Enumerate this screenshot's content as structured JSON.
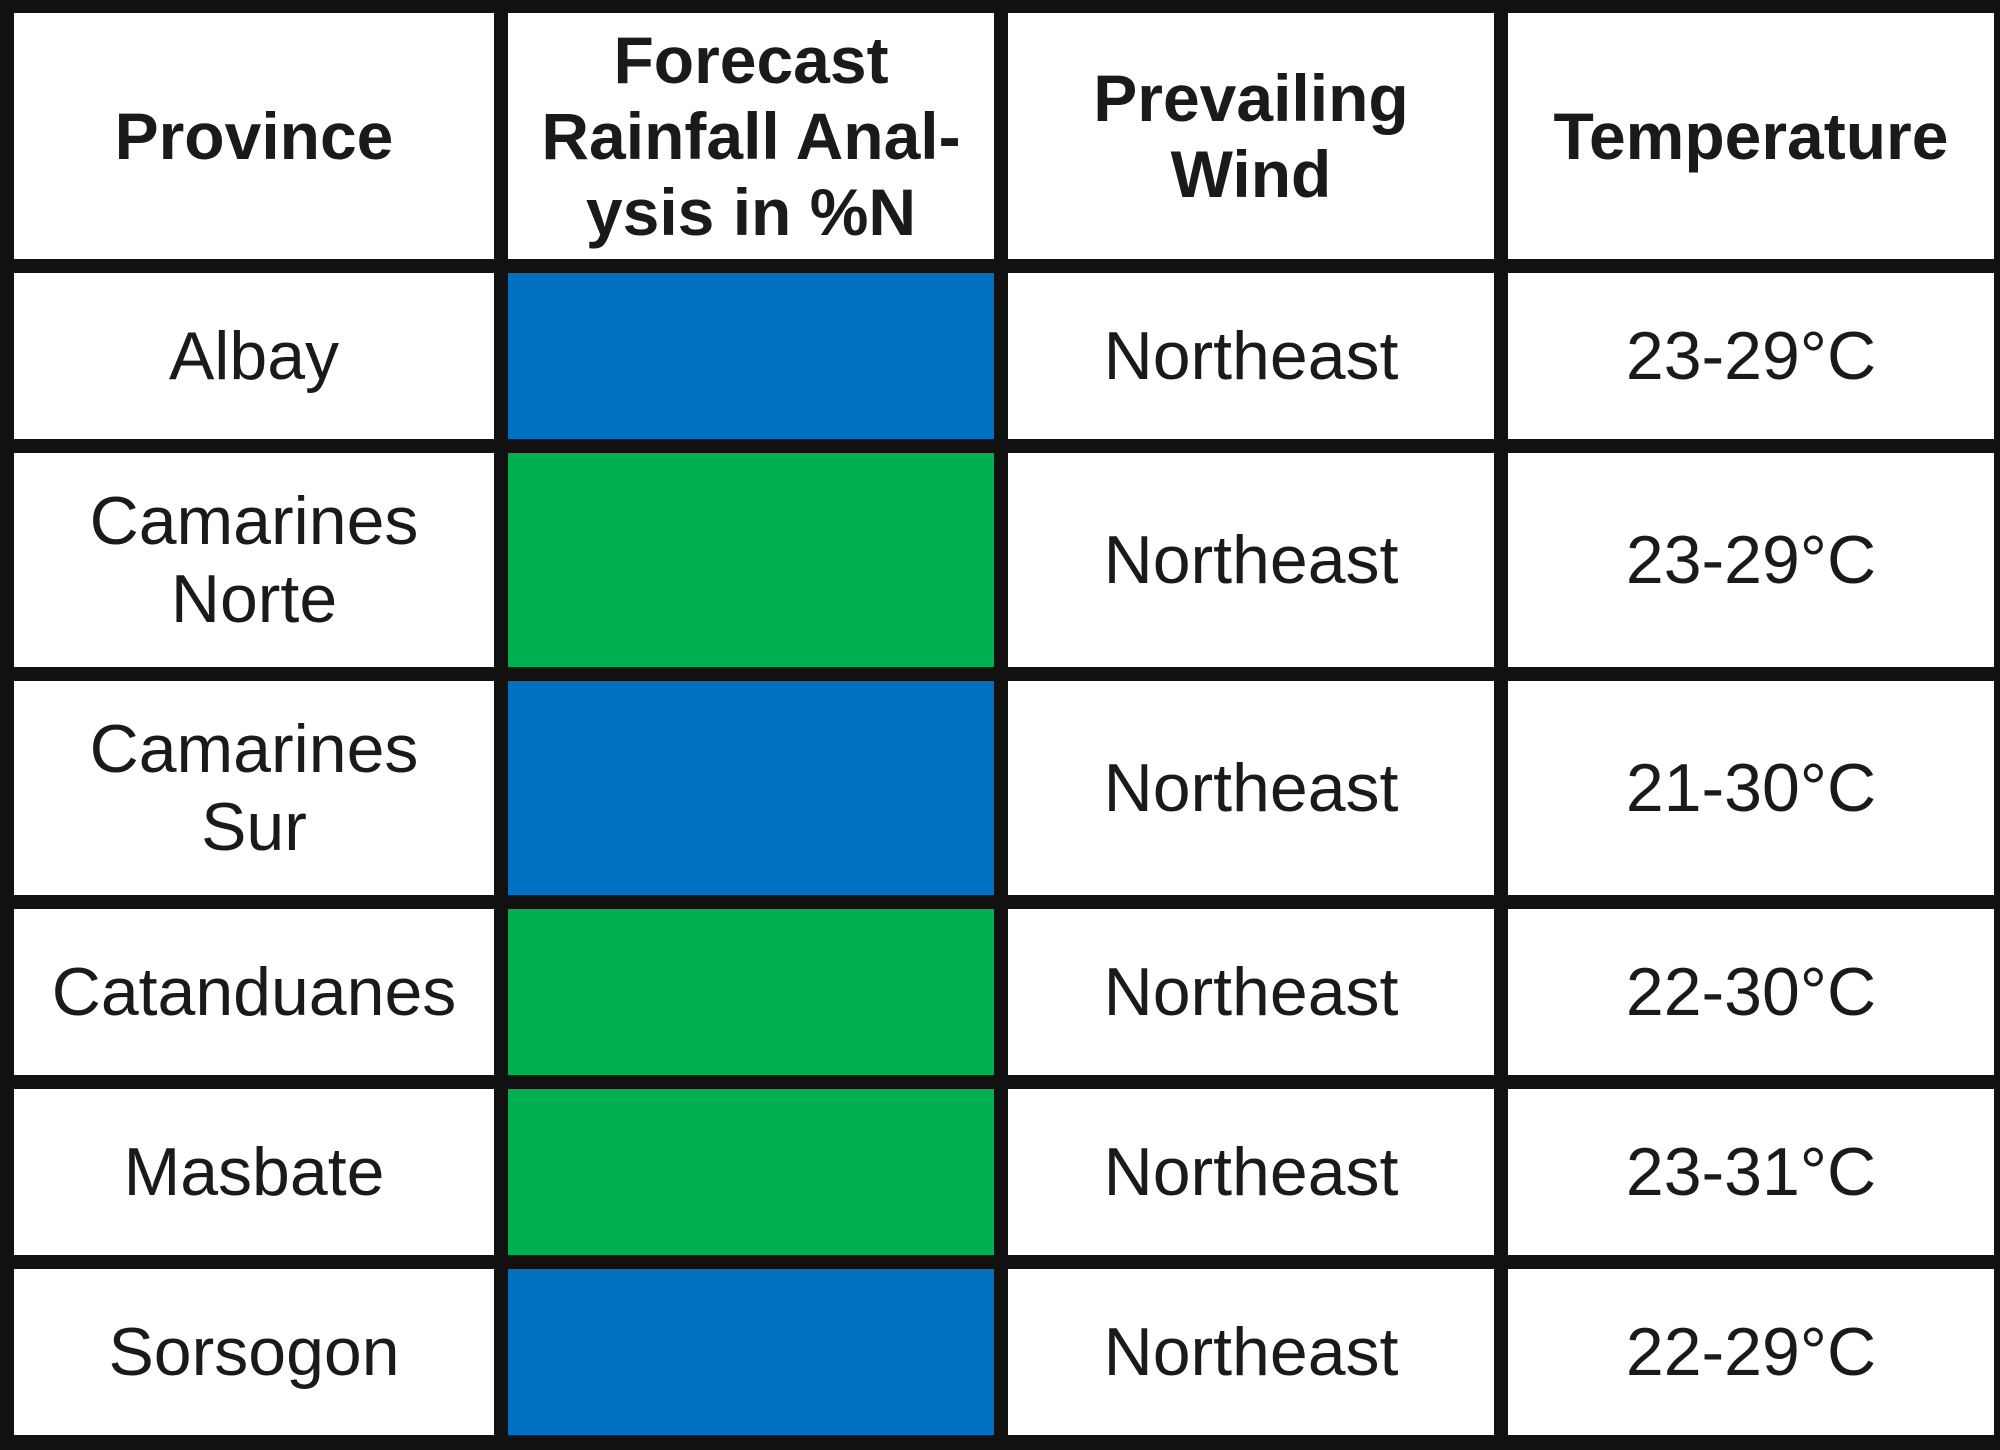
{
  "table": {
    "headers": {
      "province": "Province",
      "rainfall": "Forecast\nRainfall Anal-\nysis in %N",
      "wind": "Prevailing\nWind",
      "temperature": "Temperature"
    },
    "colors": {
      "blue": "#0070c0",
      "green": "#00b050"
    },
    "rows": [
      {
        "province": "Albay",
        "rainfall_color": "blue",
        "wind": "Northeast",
        "temperature": "23-29°C"
      },
      {
        "province": "Camarines\nNorte",
        "rainfall_color": "green",
        "wind": "Northeast",
        "temperature": "23-29°C"
      },
      {
        "province": "Camarines\nSur",
        "rainfall_color": "blue",
        "wind": "Northeast",
        "temperature": "21-30°C"
      },
      {
        "province": "Catanduanes",
        "rainfall_color": "green",
        "wind": "Northeast",
        "temperature": "22-30°C"
      },
      {
        "province": "Masbate",
        "rainfall_color": "green",
        "wind": "Northeast",
        "temperature": "23-31°C"
      },
      {
        "province": "Sorsogon",
        "rainfall_color": "blue",
        "wind": "Northeast",
        "temperature": "22-29°C"
      }
    ]
  }
}
